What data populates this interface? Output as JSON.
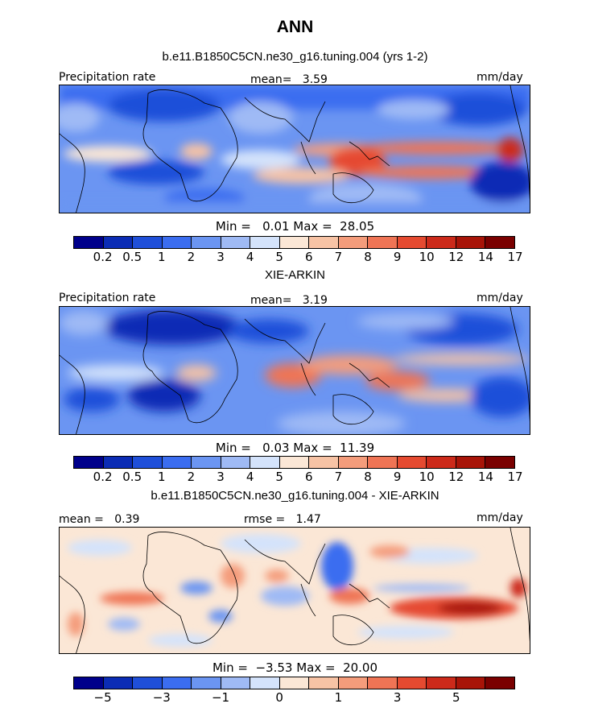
{
  "titles": {
    "main": "ANN",
    "sub": "b.e11.B1850C5CN.ne30_g16.tuning.004 (yrs 1-2)",
    "mid": "XIE-ARKIN",
    "diff": "b.e11.B1850C5CN.ne30_g16.tuning.004 - XIE-ARKIN"
  },
  "panel1": {
    "var": "Precipitation rate",
    "mean": "mean=   3.59",
    "units": "mm/day",
    "minmax": "Min =   0.01 Max =  28.05"
  },
  "panel2": {
    "var": "Precipitation rate",
    "mean": "mean=   3.19",
    "units": "mm/day",
    "minmax": "Min =   0.03 Max =  11.39"
  },
  "panel3": {
    "mean": "mean =   0.39",
    "rmse": "rmse =   1.47",
    "units": "mm/day",
    "minmax": "Min =  −3.53 Max =  20.00"
  },
  "colorbar_abs": {
    "colors": [
      "#00008b",
      "#0b2cb5",
      "#1f4fd9",
      "#3b6df0",
      "#6b95f2",
      "#9fbaf5",
      "#d4e3fb",
      "#fbe7d6",
      "#f7c3a5",
      "#f49c7b",
      "#ef7455",
      "#e54a30",
      "#cc2a1a",
      "#a81408",
      "#7a0000"
    ],
    "labels": [
      "0.2",
      "0.5",
      "1",
      "2",
      "3",
      "4",
      "5",
      "6",
      "7",
      "8",
      "9",
      "10",
      "12",
      "14",
      "17"
    ]
  },
  "colorbar_diff": {
    "colors": [
      "#00008b",
      "#0b2cb5",
      "#1f4fd9",
      "#3b6df0",
      "#6b95f2",
      "#9fbaf5",
      "#d4e3fb",
      "#fbe7d6",
      "#f7c3a5",
      "#f49c7b",
      "#ef7455",
      "#e54a30",
      "#cc2a1a",
      "#a81408",
      "#7a0000"
    ],
    "labels": [
      "−5",
      "−3",
      "−1",
      "0",
      "1",
      "3",
      "5"
    ]
  }
}
